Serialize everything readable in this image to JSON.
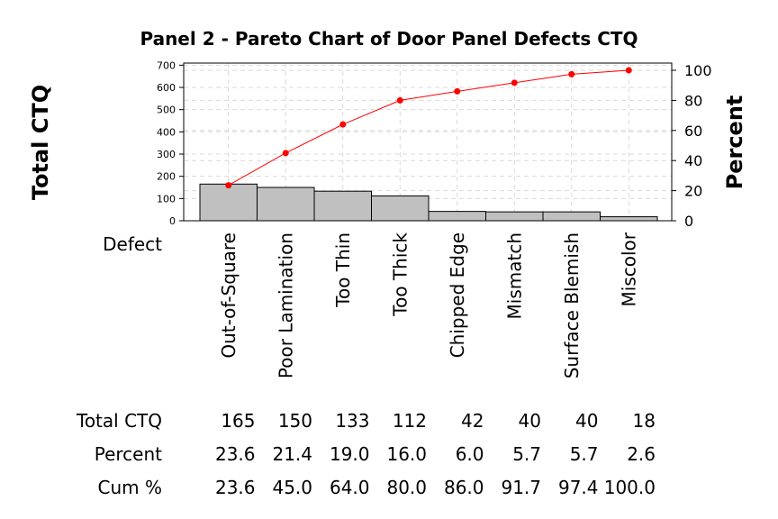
{
  "chart_data": {
    "type": "bar",
    "title": "Panel 2 - Pareto Chart of Door Panel Defects CTQ",
    "ylabel": "Total CTQ",
    "y2label": "Percent",
    "xlabel": "Defect",
    "categories": [
      "Out-of-Square",
      "Poor Lamination",
      "Too Thin",
      "Too Thick",
      "Chipped Edge",
      "Mismatch",
      "Surface Blemish",
      "Miscolor"
    ],
    "ylim": [
      0,
      750
    ],
    "yticks": [
      0,
      100,
      200,
      300,
      400,
      500,
      600,
      700
    ],
    "y2lim": [
      0,
      100
    ],
    "y2ticks": [
      0,
      20,
      40,
      60,
      80,
      100
    ],
    "grid": true,
    "series": [
      {
        "name": "Total CTQ",
        "type": "bar",
        "values": [
          165,
          150,
          133,
          112,
          42,
          40,
          40,
          18
        ]
      },
      {
        "name": "Cum %",
        "type": "line",
        "axis": "right",
        "values": [
          23.6,
          45.0,
          64.0,
          80.0,
          86.0,
          91.7,
          97.4,
          100.0
        ]
      }
    ],
    "table": {
      "row_labels": [
        "Total CTQ",
        "Percent",
        "Cum %"
      ],
      "rows": [
        [
          "165",
          "150",
          "133",
          "112",
          "42",
          "40",
          "40",
          "18"
        ],
        [
          "23.6",
          "21.4",
          "19.0",
          "16.0",
          "6.0",
          "5.7",
          "5.7",
          "2.6"
        ],
        [
          "23.6",
          "45.0",
          "64.0",
          "80.0",
          "86.0",
          "91.7",
          "97.4",
          "100.0"
        ]
      ]
    },
    "colors": {
      "bar_fill": "#c0c0c0",
      "bar_stroke": "#000000",
      "line": "#ff0000",
      "grid": "#d9d9d9"
    }
  }
}
